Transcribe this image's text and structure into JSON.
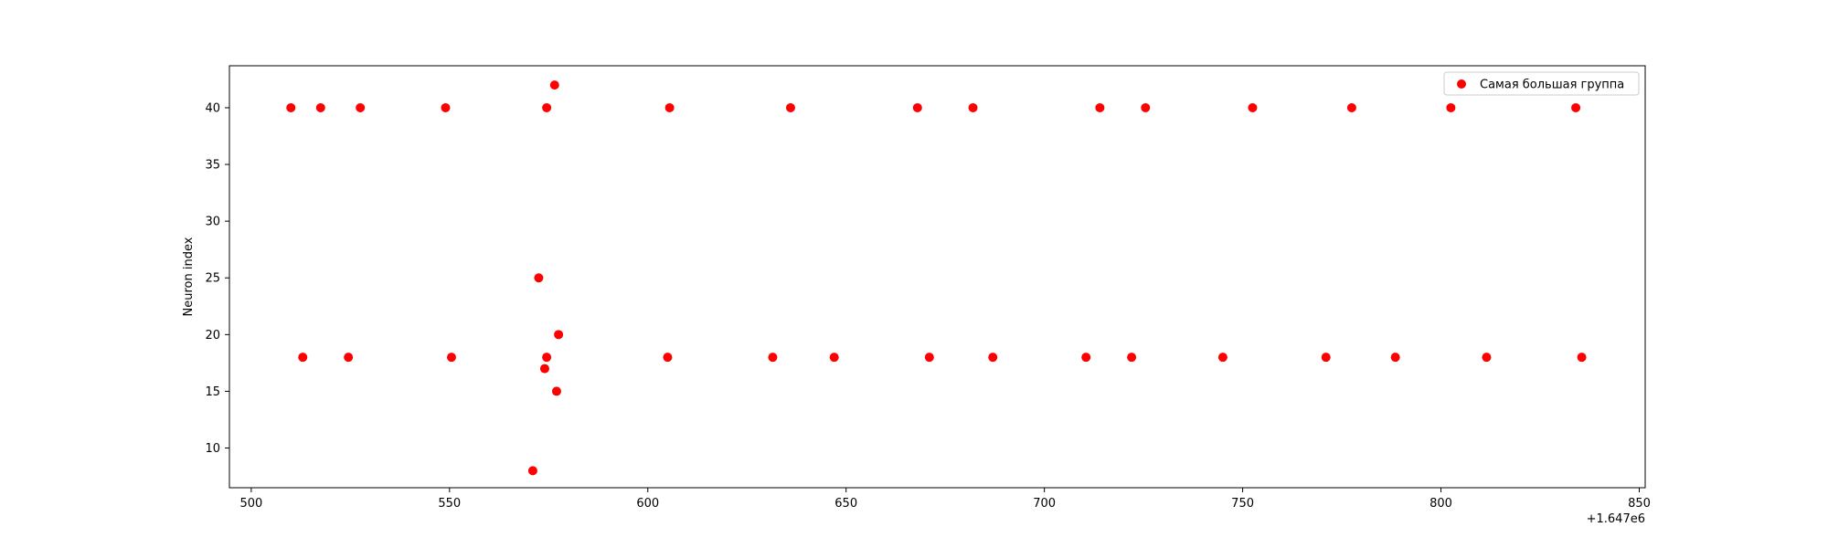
{
  "chart_data": {
    "type": "scatter",
    "title": "",
    "xlabel": "",
    "ylabel": "Neuron index",
    "x_offset_label": "+1.647e6",
    "xlim": [
      494.5,
      851.5
    ],
    "ylim": [
      6.5,
      43.7
    ],
    "xticks": [
      500,
      550,
      600,
      650,
      700,
      750,
      800,
      850
    ],
    "yticks": [
      10,
      15,
      20,
      25,
      30,
      35,
      40
    ],
    "grid": false,
    "legend_position": "top-right",
    "series": [
      {
        "name": "Самая большая группа",
        "color": "#ff0000",
        "points": [
          [
            510,
            40
          ],
          [
            517.5,
            40
          ],
          [
            527.5,
            40
          ],
          [
            549,
            40
          ],
          [
            574.5,
            40
          ],
          [
            605.5,
            40
          ],
          [
            636,
            40
          ],
          [
            668,
            40
          ],
          [
            682,
            40
          ],
          [
            714,
            40
          ],
          [
            725.5,
            40
          ],
          [
            752.5,
            40
          ],
          [
            777.5,
            40
          ],
          [
            802.5,
            40
          ],
          [
            834,
            40
          ],
          [
            576.5,
            42
          ],
          [
            513,
            18
          ],
          [
            524.5,
            18
          ],
          [
            550.5,
            18
          ],
          [
            574.5,
            18
          ],
          [
            605,
            18
          ],
          [
            631.5,
            18
          ],
          [
            647,
            18
          ],
          [
            671,
            18
          ],
          [
            687,
            18
          ],
          [
            710.5,
            18
          ],
          [
            722,
            18
          ],
          [
            745,
            18
          ],
          [
            771,
            18
          ],
          [
            788.5,
            18
          ],
          [
            811.5,
            18
          ],
          [
            835.5,
            18
          ],
          [
            572.5,
            25
          ],
          [
            577.5,
            20
          ],
          [
            574,
            17
          ],
          [
            577,
            15
          ],
          [
            571,
            8
          ]
        ]
      }
    ]
  }
}
